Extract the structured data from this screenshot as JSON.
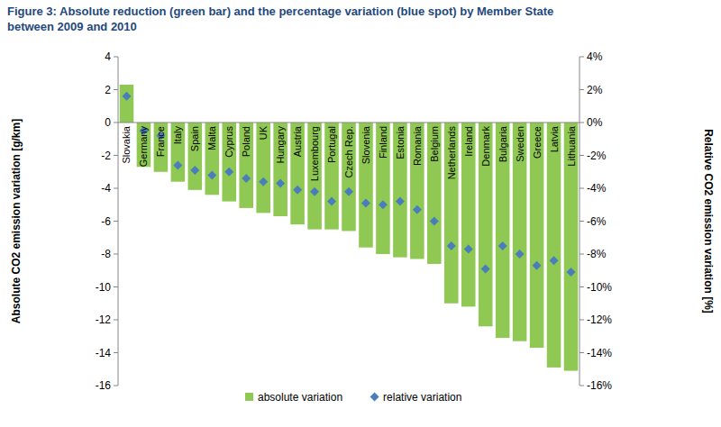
{
  "chart_data": {
    "type": "bar",
    "title": [
      "Figure 3: Absolute reduction (green bar) and the percentage variation (blue spot) by Member State",
      "between 2009 and 2010"
    ],
    "y_label": "Absolute CO2 emission variation [g/km]",
    "y2_label": "Relative CO2 emission variation [%]",
    "categories": [
      "Slovakia",
      "Germany",
      "France",
      "Italy",
      "Spain",
      "Malta",
      "Cyprus",
      "Poland",
      "UK",
      "Hungary",
      "Austria",
      "Luxembourg",
      "Portugal",
      "Czech Rep.",
      "Slovenia",
      "Finland",
      "Estonia",
      "Romania",
      "Belgium",
      "Netherlands",
      "Ireland",
      "Denmark",
      "Bulgaria",
      "Sweden",
      "Greece",
      "Latvia",
      "Lithuania"
    ],
    "series": [
      {
        "name": "absolute variation",
        "type": "bar",
        "color": "#8fc852",
        "values": [
          2.3,
          -2.7,
          -3.0,
          -3.6,
          -4.1,
          -4.4,
          -4.8,
          -5.2,
          -5.5,
          -5.7,
          -6.2,
          -6.5,
          -6.5,
          -6.6,
          -7.6,
          -8.0,
          -8.2,
          -8.3,
          -8.6,
          -11.0,
          -11.2,
          -12.4,
          -13.1,
          -13.3,
          -13.7,
          -14.9,
          -15.1
        ]
      },
      {
        "name": "relative variation",
        "type": "scatter",
        "marker": "diamond",
        "color": "#4a7ebb",
        "axis": "y2",
        "values": [
          1.6,
          -0.5,
          -0.8,
          -2.6,
          -2.9,
          -3.2,
          -3.0,
          -3.4,
          -3.6,
          -3.7,
          -4.1,
          -4.2,
          -4.8,
          -4.2,
          -4.9,
          -5.0,
          -4.8,
          -5.3,
          -6.0,
          -7.5,
          -7.7,
          -8.9,
          -7.5,
          -8.0,
          -8.7,
          -8.4,
          -9.1
        ]
      }
    ],
    "ylim": [
      -16,
      4
    ],
    "yticks": [
      -16,
      -14,
      -12,
      -10,
      -8,
      -6,
      -4,
      -2,
      0,
      2,
      4
    ],
    "y2lim": [
      -16,
      4
    ],
    "y2ticks": [
      {
        "value": -16,
        "label": "-16%"
      },
      {
        "value": -14,
        "label": "-14%"
      },
      {
        "value": -12,
        "label": "-12%"
      },
      {
        "value": -10,
        "label": "-10%"
      },
      {
        "value": -8,
        "label": "-8%"
      },
      {
        "value": -6,
        "label": "-6%"
      },
      {
        "value": -4,
        "label": "-4%"
      },
      {
        "value": -2,
        "label": "-2%"
      },
      {
        "value": 0,
        "label": "0%"
      },
      {
        "value": 2,
        "label": "2%"
      },
      {
        "value": 4,
        "label": "4%"
      }
    ],
    "grid": false,
    "legend": "bottom"
  }
}
